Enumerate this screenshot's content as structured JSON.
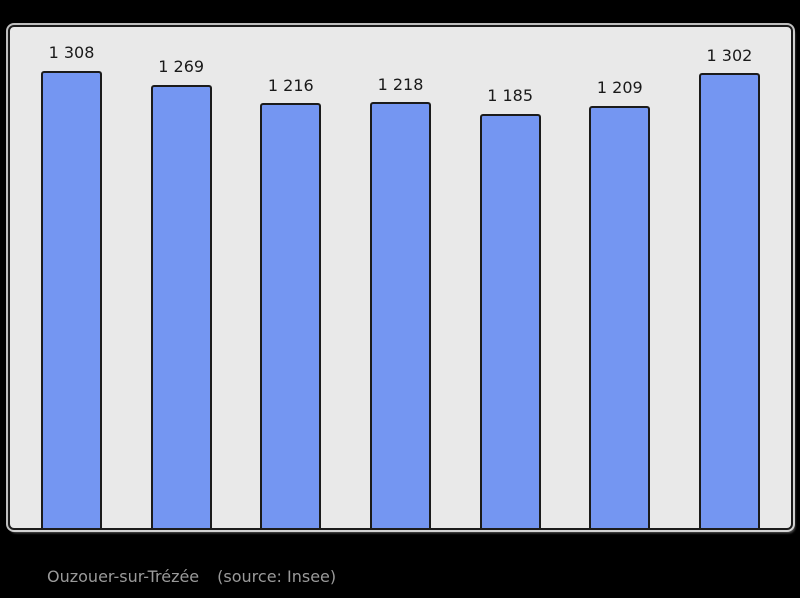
{
  "chart_data": {
    "type": "bar",
    "title": "",
    "xlabel": "",
    "ylabel": "",
    "values": [
      1308,
      1269,
      1216,
      1218,
      1185,
      1209,
      1302
    ],
    "bar_labels": [
      "1 308",
      "1 269",
      "1 216",
      "1 218",
      "1 185",
      "1 209",
      "1 302"
    ],
    "ylim": [
      0,
      1434
    ],
    "grid": false,
    "legend": "none",
    "axis_tick_labels": "none",
    "bar_color": "#7496F2",
    "bar_border_color": "#1b1b1b",
    "plot_background": "#E9E9E9",
    "outer_background": "#000000"
  },
  "caption": {
    "commune": "Ouzouer-sur-Trézée",
    "source": "(source: Insee)",
    "color": "#9a9a9a"
  }
}
